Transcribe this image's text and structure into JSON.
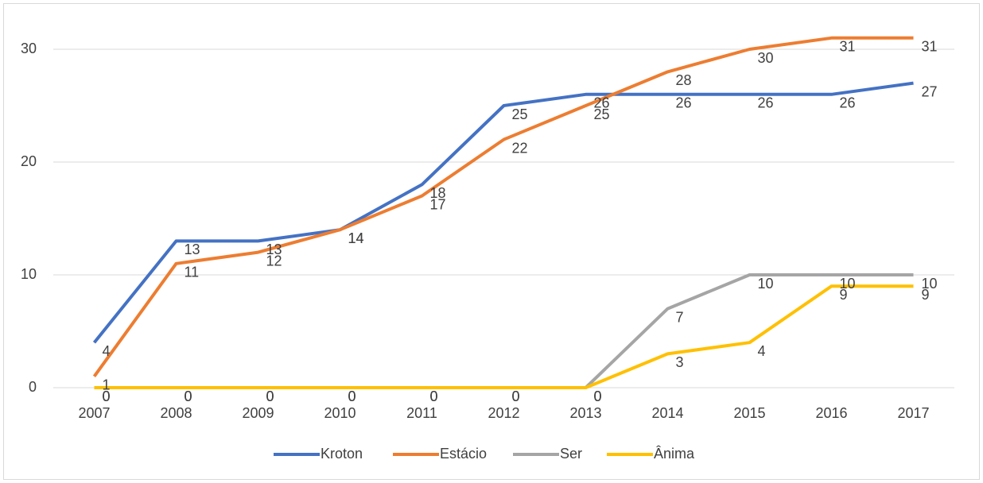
{
  "chart_data": {
    "type": "line",
    "categories": [
      "2007",
      "2008",
      "2009",
      "2010",
      "2011",
      "2012",
      "2013",
      "2014",
      "2015",
      "2016",
      "2017"
    ],
    "series": [
      {
        "name": "Kroton",
        "color": "#4472c4",
        "values": [
          4,
          13,
          13,
          14,
          18,
          25,
          26,
          26,
          26,
          26,
          27
        ]
      },
      {
        "name": "Estácio",
        "color": "#ed7d31",
        "values": [
          1,
          11,
          12,
          14,
          17,
          22,
          25,
          28,
          30,
          31,
          31
        ]
      },
      {
        "name": "Ser",
        "color": "#a5a5a5",
        "values": [
          0,
          0,
          0,
          0,
          0,
          0,
          0,
          7,
          10,
          10,
          10
        ]
      },
      {
        "name": "Ânima",
        "color": "#ffc000",
        "values": [
          0,
          0,
          0,
          0,
          0,
          0,
          0,
          3,
          4,
          9,
          9
        ]
      }
    ],
    "ylim": [
      0,
      30
    ],
    "yticks": [
      0,
      10,
      20,
      30
    ],
    "grid": true,
    "legend": "bottom"
  }
}
